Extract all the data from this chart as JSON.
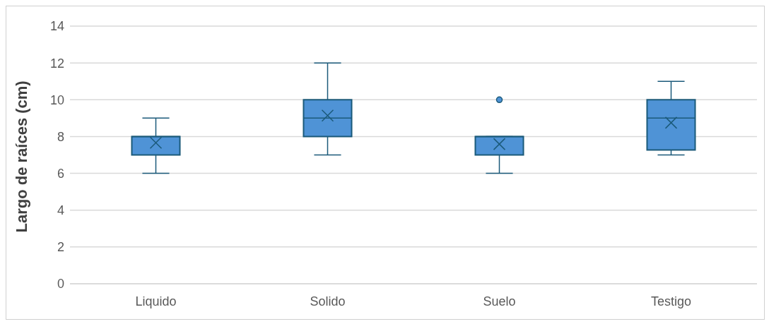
{
  "chart_data": {
    "type": "box",
    "ylabel": "Largo de raíces (cm)",
    "categories": [
      "Liquido",
      "Solido",
      "Suelo",
      "Testigo"
    ],
    "color": "#4f93d6",
    "boxes": [
      {
        "low": 6,
        "q1": 7,
        "median": 8,
        "q3": 8,
        "high": 9,
        "mean": 7.66
      },
      {
        "low": 7,
        "q1": 8,
        "median": 9,
        "q3": 10,
        "high": 12,
        "mean": 9.14
      },
      {
        "low": 6,
        "q1": 7,
        "median": 8,
        "q3": 8,
        "high": 8,
        "mean": 7.59,
        "outliers": [
          10
        ]
      },
      {
        "low": 7,
        "q1": 7.27,
        "median": 9,
        "q3": 10,
        "high": 11,
        "mean": 8.75
      }
    ],
    "ylim": [
      0,
      14
    ],
    "yticks": [
      0,
      2,
      4,
      6,
      8,
      10,
      12,
      14
    ],
    "grid": "y"
  }
}
